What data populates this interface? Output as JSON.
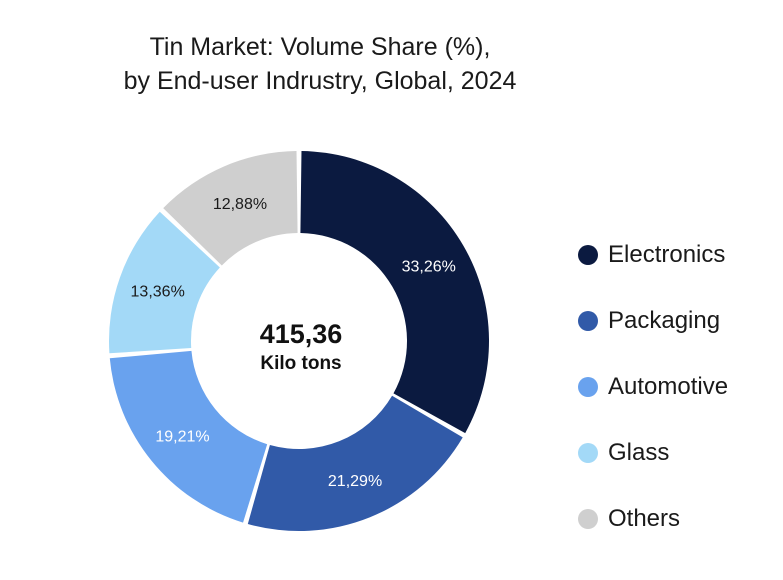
{
  "chart_data": {
    "type": "pie",
    "title": "Tin Market: Volume Share (%),",
    "subtitle": "by End-user Indrustry, Global, 2024",
    "center_value": "415,36",
    "center_unit": "Kilo tons",
    "legend_position": "right",
    "slices": [
      {
        "label": "Electronics",
        "value": 33.26,
        "display": "33,26%",
        "color": "#0b1a40",
        "text_color": "#ffffff"
      },
      {
        "label": "Packaging",
        "value": 21.29,
        "display": "21,29%",
        "color": "#315aa8",
        "text_color": "#ffffff"
      },
      {
        "label": "Automotive",
        "value": 19.21,
        "display": "19,21%",
        "color": "#69a2ee",
        "text_color": "#ffffff"
      },
      {
        "label": "Glass",
        "value": 13.36,
        "display": "13,36%",
        "color": "#a3d9f7",
        "text_color": "#1a1a1a"
      },
      {
        "label": "Others",
        "value": 12.88,
        "display": "12,88%",
        "color": "#cfcfcf",
        "text_color": "#1a1a1a"
      }
    ]
  }
}
